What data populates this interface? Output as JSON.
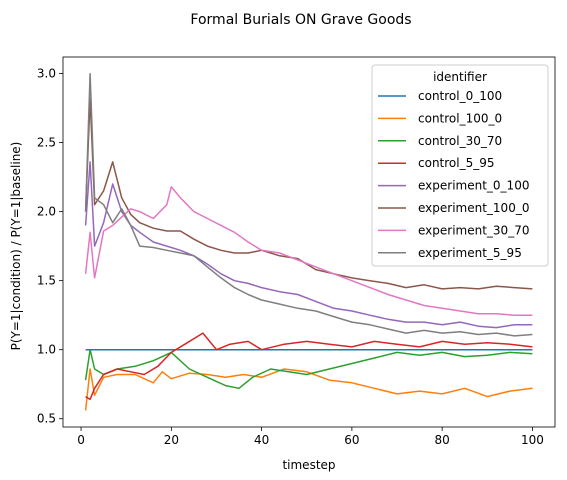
{
  "chart_data": {
    "type": "line",
    "title": "Formal Burials ON Grave Goods",
    "xlabel": "timestep",
    "ylabel": "P(Y=1|condition) / P(Y=1|baseline)",
    "xlim": [
      -4,
      105
    ],
    "ylim": [
      0.44,
      3.12
    ],
    "xticks": [
      0,
      20,
      40,
      60,
      80,
      100
    ],
    "yticks": [
      0.5,
      1.0,
      1.5,
      2.0,
      2.5,
      3.0
    ],
    "ytick_labels": [
      "0.5",
      "1.0",
      "1.5",
      "2.0",
      "2.5",
      "3.0"
    ],
    "grid": false,
    "legend": {
      "title": "identifier",
      "placement": "top-right"
    },
    "series": [
      {
        "name": "control_0_100",
        "color": "#1f77b4",
        "x": [
          1,
          10,
          20,
          30,
          40,
          50,
          60,
          70,
          80,
          90,
          100
        ],
        "y": [
          1.0,
          1.0,
          1.0,
          1.0,
          1.0,
          1.0,
          1.0,
          1.0,
          1.0,
          1.0,
          1.0
        ]
      },
      {
        "name": "control_100_0",
        "color": "#ff7f0e",
        "x": [
          1,
          2,
          3,
          5,
          8,
          12,
          16,
          18,
          20,
          24,
          28,
          32,
          36,
          40,
          45,
          50,
          55,
          60,
          65,
          70,
          75,
          80,
          85,
          90,
          95,
          100
        ],
        "y": [
          0.56,
          0.86,
          0.67,
          0.8,
          0.82,
          0.82,
          0.76,
          0.84,
          0.79,
          0.83,
          0.82,
          0.8,
          0.82,
          0.8,
          0.86,
          0.84,
          0.78,
          0.76,
          0.72,
          0.68,
          0.7,
          0.68,
          0.72,
          0.66,
          0.7,
          0.72
        ]
      },
      {
        "name": "control_30_70",
        "color": "#2ca02c",
        "x": [
          1,
          2,
          3,
          5,
          8,
          12,
          16,
          20,
          24,
          28,
          32,
          35,
          38,
          42,
          46,
          50,
          55,
          60,
          65,
          70,
          75,
          80,
          85,
          90,
          95,
          100
        ],
        "y": [
          0.78,
          1.0,
          0.86,
          0.82,
          0.86,
          0.88,
          0.92,
          0.98,
          0.86,
          0.8,
          0.74,
          0.72,
          0.8,
          0.86,
          0.84,
          0.82,
          0.86,
          0.9,
          0.94,
          0.98,
          0.96,
          0.98,
          0.95,
          0.96,
          0.98,
          0.97
        ]
      },
      {
        "name": "control_5_95",
        "color": "#d62728",
        "x": [
          1,
          2,
          3,
          5,
          8,
          11,
          14,
          17,
          20,
          23,
          27,
          30,
          33,
          37,
          40,
          45,
          50,
          55,
          60,
          65,
          70,
          75,
          80,
          85,
          90,
          95,
          100
        ],
        "y": [
          0.66,
          0.64,
          0.72,
          0.82,
          0.86,
          0.84,
          0.82,
          0.88,
          0.98,
          1.04,
          1.12,
          1.0,
          1.04,
          1.06,
          1.0,
          1.04,
          1.06,
          1.04,
          1.02,
          1.06,
          1.04,
          1.02,
          1.06,
          1.04,
          1.05,
          1.04,
          1.02
        ]
      },
      {
        "name": "experiment_0_100",
        "color": "#9467bd",
        "x": [
          1,
          2,
          3,
          5,
          7,
          9,
          11,
          13,
          16,
          19,
          22,
          25,
          28,
          31,
          34,
          37,
          40,
          44,
          48,
          52,
          56,
          60,
          64,
          68,
          72,
          76,
          80,
          84,
          88,
          92,
          96,
          100
        ],
        "y": [
          1.9,
          2.36,
          1.75,
          1.92,
          2.2,
          2.0,
          1.9,
          1.85,
          1.78,
          1.75,
          1.72,
          1.68,
          1.62,
          1.55,
          1.5,
          1.48,
          1.45,
          1.42,
          1.4,
          1.35,
          1.3,
          1.28,
          1.25,
          1.22,
          1.2,
          1.2,
          1.18,
          1.2,
          1.17,
          1.16,
          1.18,
          1.18
        ]
      },
      {
        "name": "experiment_100_0",
        "color": "#8c564b",
        "x": [
          1,
          2,
          3,
          5,
          7,
          9,
          11,
          13,
          16,
          19,
          22,
          25,
          28,
          31,
          34,
          37,
          40,
          44,
          48,
          52,
          56,
          60,
          64,
          68,
          72,
          76,
          80,
          84,
          88,
          92,
          96,
          100
        ],
        "y": [
          2.0,
          2.82,
          2.05,
          2.15,
          2.36,
          2.1,
          1.98,
          1.92,
          1.88,
          1.86,
          1.86,
          1.8,
          1.75,
          1.72,
          1.7,
          1.7,
          1.72,
          1.68,
          1.66,
          1.58,
          1.55,
          1.52,
          1.5,
          1.48,
          1.45,
          1.47,
          1.44,
          1.45,
          1.44,
          1.46,
          1.45,
          1.44
        ]
      },
      {
        "name": "experiment_30_70",
        "color": "#e377c2",
        "x": [
          1,
          2,
          3,
          5,
          7,
          9,
          11,
          13,
          16,
          19,
          20,
          22,
          25,
          28,
          31,
          34,
          37,
          40,
          44,
          48,
          52,
          56,
          60,
          64,
          68,
          72,
          76,
          80,
          84,
          88,
          92,
          96,
          100
        ],
        "y": [
          1.55,
          1.85,
          1.52,
          1.86,
          1.9,
          1.96,
          2.02,
          2.0,
          1.95,
          2.05,
          2.18,
          2.1,
          2.0,
          1.95,
          1.9,
          1.85,
          1.78,
          1.72,
          1.7,
          1.65,
          1.6,
          1.55,
          1.5,
          1.45,
          1.4,
          1.36,
          1.32,
          1.3,
          1.28,
          1.26,
          1.26,
          1.25,
          1.25
        ]
      },
      {
        "name": "experiment_5_95",
        "color": "#7f7f7f",
        "x": [
          1,
          2,
          3,
          5,
          7,
          9,
          11,
          13,
          16,
          19,
          22,
          25,
          28,
          31,
          34,
          37,
          40,
          44,
          48,
          52,
          56,
          60,
          64,
          68,
          72,
          76,
          80,
          84,
          88,
          92,
          96,
          100
        ],
        "y": [
          2.0,
          3.0,
          2.1,
          2.05,
          1.92,
          2.02,
          1.9,
          1.75,
          1.74,
          1.72,
          1.7,
          1.68,
          1.6,
          1.52,
          1.45,
          1.4,
          1.36,
          1.33,
          1.3,
          1.28,
          1.24,
          1.2,
          1.18,
          1.15,
          1.12,
          1.14,
          1.12,
          1.13,
          1.11,
          1.12,
          1.1,
          1.11
        ]
      }
    ]
  }
}
